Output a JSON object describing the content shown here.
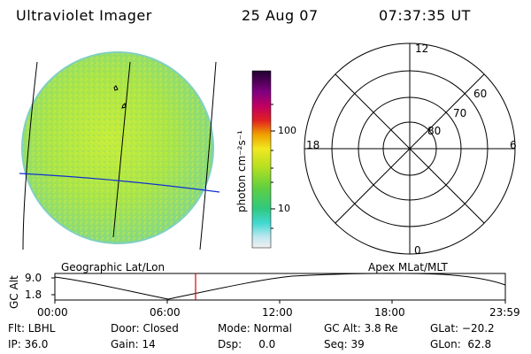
{
  "header": {
    "instrument": "Ultraviolet Imager",
    "date": "25 Aug 07",
    "time": "07:37:35 UT"
  },
  "left_panel": {
    "label": "Geographic Lat/Lon"
  },
  "right_panel": {
    "label": "Apex MLat/MLT"
  },
  "colorbar": {
    "unit_label": "photon cm⁻²s⁻¹",
    "ticks": [
      "100",
      "10"
    ],
    "scale": "log"
  },
  "polar": {
    "mlt_labels": {
      "top": "12",
      "right": "6",
      "bottom": "0",
      "left": "18"
    },
    "lat_labels": [
      "80",
      "70",
      "60"
    ]
  },
  "altitude_plot": {
    "ylabel": "GC Alt",
    "yticks": [
      "9.0",
      "1.8"
    ],
    "xticks": [
      "00:00",
      "06:00",
      "12:00",
      "18:00",
      "23:59"
    ],
    "current_time_marker": "07:37",
    "colors": {
      "curve": "#000000",
      "marker": "#e00000"
    }
  },
  "status": {
    "row1": [
      {
        "key": "flt",
        "label": "Flt: LBHL"
      },
      {
        "key": "door",
        "label": "Door: Closed"
      },
      {
        "key": "mode",
        "label": "Mode: Normal"
      },
      {
        "key": "gcalt",
        "label": "GC Alt: 3.8 Re"
      },
      {
        "key": "glat",
        "label": "GLat: −20.2"
      }
    ],
    "row2": [
      {
        "key": "ip",
        "label": "IP: 36.0"
      },
      {
        "key": "gain",
        "label": "Gain: 14"
      },
      {
        "key": "dsp",
        "label": "Dsp:     0.0"
      },
      {
        "key": "seq",
        "label": "Seq: 39"
      },
      {
        "key": "glon",
        "label": "GLon:  62.8"
      }
    ]
  },
  "colors": {
    "earth_fill": "#9fe040",
    "colorbar_top": "#200030",
    "meridian_blue": "#1030d0"
  }
}
